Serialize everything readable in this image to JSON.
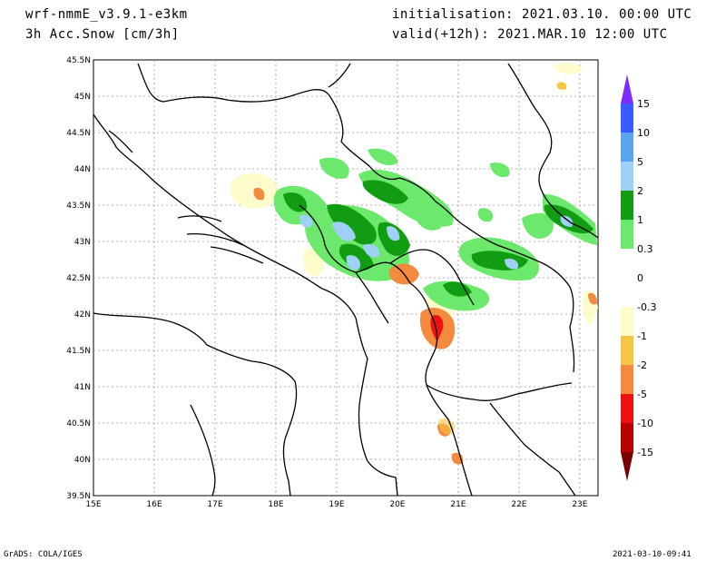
{
  "header": {
    "model": "wrf-nmmE_v3.9.1-e3km",
    "variable": "3h Acc.Snow [cm/3h]",
    "initialisation": "initialisation: 2021.03.10.  00:00 UTC",
    "valid": "valid(+12h): 2021.MAR.10 12:00 UTC"
  },
  "footer": {
    "credit": "GrADS: COLA/IGES",
    "timestamp": "2021-03-10-09:41"
  },
  "map": {
    "lon_ticks": [
      "15E",
      "16E",
      "17E",
      "18E",
      "19E",
      "20E",
      "21E",
      "22E",
      "23E"
    ],
    "lat_ticks": [
      "39.5N",
      "40N",
      "40.5N",
      "41N",
      "41.5N",
      "42N",
      "42.5N",
      "43N",
      "43.5N",
      "44N",
      "44.5N",
      "45N",
      "45.5N"
    ],
    "lon_range": [
      15,
      23.3
    ],
    "lat_range": [
      39.5,
      45.5
    ],
    "grid": true
  },
  "colorbar": {
    "labels": [
      "15",
      "10",
      "5",
      "2",
      "1",
      "0.3",
      "0",
      "-0.3",
      "-1",
      "-2",
      "-5",
      "-10",
      "-15"
    ],
    "colors": [
      "#7f2bff",
      "#3a5bff",
      "#5aa5f0",
      "#9fd0f5",
      "#119c11",
      "#6ce86c",
      "#ffffff",
      "#ffffff",
      "#fffccc",
      "#f5c643",
      "#f38a3d",
      "#ee1111",
      "#b80000",
      "#7a0000"
    ]
  }
}
